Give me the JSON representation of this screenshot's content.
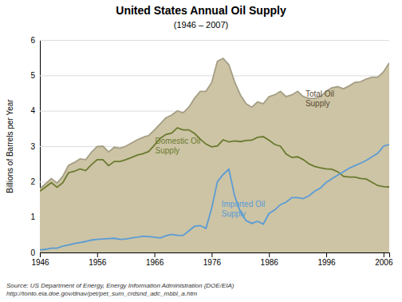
{
  "chart_data": {
    "type": "line",
    "title": "United States Annual Oil Supply",
    "subtitle": "(1946 – 2007)",
    "ylabel": "Billions of Barrels per Year",
    "source": "Source: US Department of Energy, Energy Information Administration (DOE/EIA)\nhttp://tonto.eia.doe.gov/dnav/pet/pet_sum_crdsnd_adc_mbbl_a.htm",
    "annotations": [
      "Total Oil\nSupply",
      "Domestic Oil\nSupply",
      "Imported Oil\nSupply"
    ],
    "xlim": [
      1946,
      2007
    ],
    "ylim": [
      0,
      6
    ],
    "xticks": [
      1946,
      1956,
      1966,
      1976,
      1986,
      1996,
      2006
    ],
    "yticks": [
      0,
      1,
      2,
      3,
      4,
      5,
      6
    ],
    "grid": true,
    "x": [
      1946,
      1947,
      1948,
      1949,
      1950,
      1951,
      1952,
      1953,
      1954,
      1955,
      1956,
      1957,
      1958,
      1959,
      1960,
      1961,
      1962,
      1963,
      1964,
      1965,
      1966,
      1967,
      1968,
      1969,
      1970,
      1971,
      1972,
      1973,
      1974,
      1975,
      1976,
      1977,
      1978,
      1979,
      1980,
      1981,
      1982,
      1983,
      1984,
      1985,
      1986,
      1987,
      1988,
      1989,
      1990,
      1991,
      1992,
      1993,
      1994,
      1995,
      1996,
      1997,
      1998,
      1999,
      2000,
      2001,
      2002,
      2003,
      2004,
      2005,
      2006,
      2007
    ],
    "series": [
      {
        "type": "area",
        "color": "#ccc4a5",
        "values": [
          1.8,
          1.94,
          2.09,
          1.96,
          2.15,
          2.46,
          2.54,
          2.64,
          2.62,
          2.83,
          2.99,
          3.0,
          2.84,
          2.97,
          2.94,
          3.0,
          3.09,
          3.18,
          3.25,
          3.3,
          3.46,
          3.63,
          3.8,
          3.88,
          4.0,
          3.94,
          4.1,
          4.35,
          4.55,
          4.55,
          4.8,
          5.4,
          5.48,
          5.3,
          4.82,
          4.45,
          4.2,
          4.1,
          4.25,
          4.2,
          4.4,
          4.45,
          4.55,
          4.4,
          4.45,
          4.55,
          4.4,
          4.35,
          4.35,
          4.4,
          4.55,
          4.65,
          4.68,
          4.62,
          4.7,
          4.8,
          4.82,
          4.9,
          4.95,
          4.95,
          5.1,
          5.35
        ]
      },
      {
        "type": "line",
        "color": "#6b7a2e",
        "values": [
          1.73,
          1.85,
          1.97,
          1.84,
          1.97,
          2.25,
          2.29,
          2.36,
          2.31,
          2.48,
          2.62,
          2.62,
          2.45,
          2.57,
          2.57,
          2.62,
          2.68,
          2.75,
          2.79,
          2.85,
          3.03,
          3.22,
          3.33,
          3.37,
          3.52,
          3.46,
          3.46,
          3.36,
          3.2,
          3.06,
          2.98,
          3.01,
          3.18,
          3.12,
          3.15,
          3.13,
          3.16,
          3.17,
          3.25,
          3.27,
          3.17,
          3.05,
          3.0,
          2.78,
          2.68,
          2.7,
          2.62,
          2.5,
          2.43,
          2.39,
          2.36,
          2.35,
          2.28,
          2.15,
          2.13,
          2.13,
          2.09,
          2.07,
          1.98,
          1.89,
          1.86,
          1.85
        ]
      },
      {
        "type": "line",
        "color": "#5b9bd5",
        "values": [
          0.07,
          0.09,
          0.12,
          0.12,
          0.18,
          0.21,
          0.25,
          0.28,
          0.31,
          0.35,
          0.37,
          0.38,
          0.39,
          0.4,
          0.37,
          0.38,
          0.41,
          0.43,
          0.46,
          0.45,
          0.43,
          0.41,
          0.47,
          0.51,
          0.48,
          0.48,
          0.61,
          0.74,
          0.76,
          0.68,
          1.25,
          2.0,
          2.2,
          2.35,
          1.6,
          1.15,
          0.9,
          0.82,
          0.88,
          0.8,
          1.1,
          1.2,
          1.35,
          1.42,
          1.55,
          1.55,
          1.52,
          1.6,
          1.73,
          1.82,
          1.98,
          2.08,
          2.18,
          2.28,
          2.38,
          2.45,
          2.52,
          2.6,
          2.7,
          2.8,
          3.0,
          3.05
        ]
      }
    ]
  }
}
